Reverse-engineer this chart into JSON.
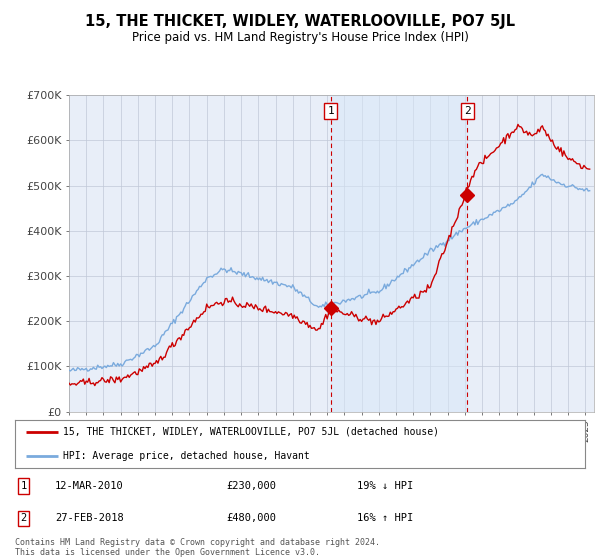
{
  "title": "15, THE THICKET, WIDLEY, WATERLOOVILLE, PO7 5JL",
  "subtitle": "Price paid vs. HM Land Registry's House Price Index (HPI)",
  "background_color": "#ffffff",
  "plot_bg_color": "#e8eef8",
  "grid_color": "#c0c8d8",
  "red_line_color": "#cc0000",
  "blue_line_color": "#7aaadd",
  "shade_color": "#d8e8f8",
  "marker1_x": 2010.2,
  "marker2_x": 2018.15,
  "marker1_label": "12-MAR-2010",
  "marker1_price": "£230,000",
  "marker1_pct": "19% ↓ HPI",
  "marker2_label": "27-FEB-2018",
  "marker2_price": "£480,000",
  "marker2_pct": "16% ↑ HPI",
  "marker1_y": 230000,
  "marker2_y": 480000,
  "legend_line1": "15, THE THICKET, WIDLEY, WATERLOOVILLE, PO7 5JL (detached house)",
  "legend_line2": "HPI: Average price, detached house, Havant",
  "footer": "Contains HM Land Registry data © Crown copyright and database right 2024.\nThis data is licensed under the Open Government Licence v3.0.",
  "xmin": 1995,
  "xmax": 2025.5,
  "ymin": 0,
  "ymax": 700000,
  "yticks": [
    0,
    100000,
    200000,
    300000,
    400000,
    500000,
    600000,
    700000
  ],
  "ytick_labels": [
    "£0",
    "£100K",
    "£200K",
    "£300K",
    "£400K",
    "£500K",
    "£600K",
    "£700K"
  ]
}
